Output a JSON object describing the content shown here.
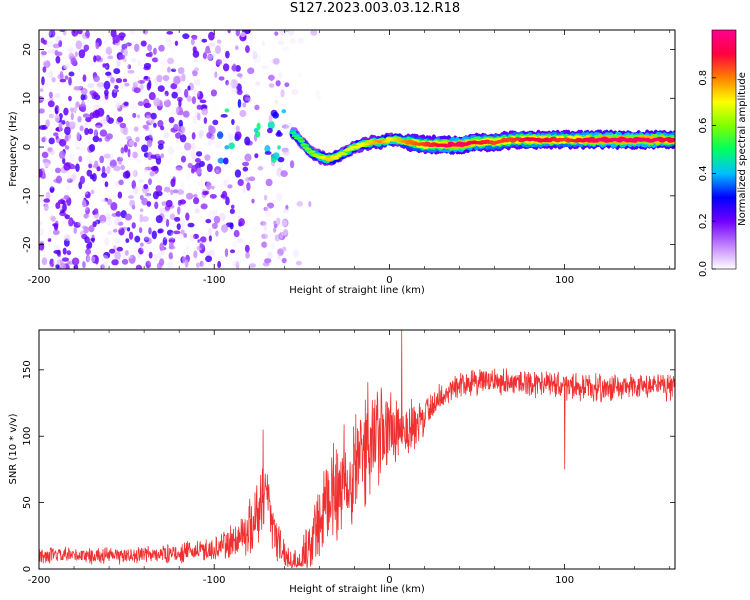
{
  "figure": {
    "title": "S127.2023.003.03.12.R18"
  },
  "colors": {
    "snr_line": "#f03030",
    "axis": "#000000",
    "background": "#ffffff"
  },
  "chart_data": [
    {
      "type": "heatmap",
      "title": "",
      "xlabel": "Height of straight line (km)",
      "ylabel": "Frequency (Hz)",
      "xlim": [
        -200,
        163
      ],
      "ylim": [
        -25,
        24
      ],
      "x_ticks": [
        -200,
        -100,
        0,
        100
      ],
      "x_tick_labels": [
        "-200",
        "-100",
        "0",
        "100"
      ],
      "y_ticks": [
        -20,
        -10,
        0,
        10,
        20
      ],
      "y_tick_labels": [
        "-20",
        "-10",
        "0",
        "10",
        "20"
      ],
      "colorbar": {
        "label": "Normalized spectral amplitude",
        "range": [
          0,
          1
        ],
        "ticks": [
          0.0,
          0.2,
          0.4,
          0.6,
          0.8
        ],
        "tick_labels": [
          "0.0",
          "0.2",
          "0.4",
          "0.6",
          "0.8"
        ],
        "colormap": [
          "#ffffff",
          "#c080ff",
          "#7000ff",
          "#0000ff",
          "#00c0ff",
          "#00ff60",
          "#80ff00",
          "#ffff00",
          "#ff8000",
          "#ff0040",
          "#ff0090"
        ]
      },
      "ridge": {
        "x": [
          -55,
          -50,
          -45,
          -40,
          -35,
          -30,
          -25,
          -20,
          -15,
          -10,
          -5,
          0,
          5,
          10,
          20,
          30,
          40,
          50,
          60,
          70,
          80,
          90,
          100,
          110,
          120,
          130,
          140,
          150,
          163
        ],
        "y": [
          3,
          1,
          -1,
          -2,
          -2.5,
          -2,
          -1,
          0,
          0.5,
          1,
          1,
          1.5,
          1.5,
          1,
          0.5,
          0.5,
          0.5,
          1,
          1,
          1.5,
          1.5,
          1.5,
          1.5,
          1.5,
          1.5,
          1.5,
          1.5,
          1.5,
          1.5
        ],
        "amplitude": [
          0.5,
          0.55,
          0.6,
          0.65,
          0.75,
          0.7,
          0.65,
          0.7,
          0.7,
          0.75,
          0.8,
          0.7,
          0.75,
          0.8,
          0.85,
          0.9,
          0.95,
          0.9,
          0.85,
          0.85,
          0.9,
          0.9,
          0.85,
          0.9,
          0.95,
          0.95,
          0.95,
          0.95,
          0.9
        ]
      },
      "noise_region": {
        "x_range": [
          -200,
          -55
        ],
        "amplitude_range": [
          0.0,
          0.15
        ]
      }
    },
    {
      "type": "line",
      "title": "",
      "xlabel": "Height of straight line (km)",
      "ylabel": "SNR (10 * v/v)",
      "xlim": [
        -200,
        163
      ],
      "ylim": [
        0,
        180
      ],
      "x_ticks": [
        -200,
        -100,
        0,
        100
      ],
      "x_tick_labels": [
        "-200",
        "-100",
        "0",
        "100"
      ],
      "y_ticks": [
        0,
        50,
        100,
        150
      ],
      "y_tick_labels": [
        "0",
        "50",
        "100",
        "150"
      ],
      "series": [
        {
          "name": "SNR",
          "envelope_x": [
            -200,
            -150,
            -120,
            -100,
            -90,
            -80,
            -75,
            -70,
            -65,
            -60,
            -55,
            -50,
            -45,
            -40,
            -35,
            -30,
            -25,
            -20,
            -15,
            -10,
            -5,
            0,
            5,
            10,
            15,
            20,
            25,
            30,
            40,
            50,
            60,
            80,
            100,
            120,
            140,
            163
          ],
          "envelope_y": [
            10,
            10,
            12,
            15,
            20,
            30,
            45,
            60,
            25,
            12,
            8,
            10,
            20,
            35,
            45,
            60,
            70,
            80,
            90,
            95,
            100,
            105,
            110,
            105,
            105,
            115,
            125,
            130,
            140,
            140,
            142,
            140,
            138,
            136,
            137,
            138
          ],
          "noise_amplitude": [
            6,
            6,
            7,
            9,
            14,
            20,
            30,
            25,
            20,
            8,
            6,
            10,
            20,
            30,
            35,
            40,
            45,
            45,
            45,
            40,
            40,
            35,
            30,
            25,
            20,
            15,
            12,
            10,
            10,
            10,
            10,
            10,
            10,
            10,
            10,
            10
          ],
          "notable_points": {
            "x": [
              -72,
              -32,
              -13,
              7,
              100
            ],
            "y": [
              105,
              95,
              110,
              180,
              75
            ]
          }
        }
      ]
    }
  ]
}
